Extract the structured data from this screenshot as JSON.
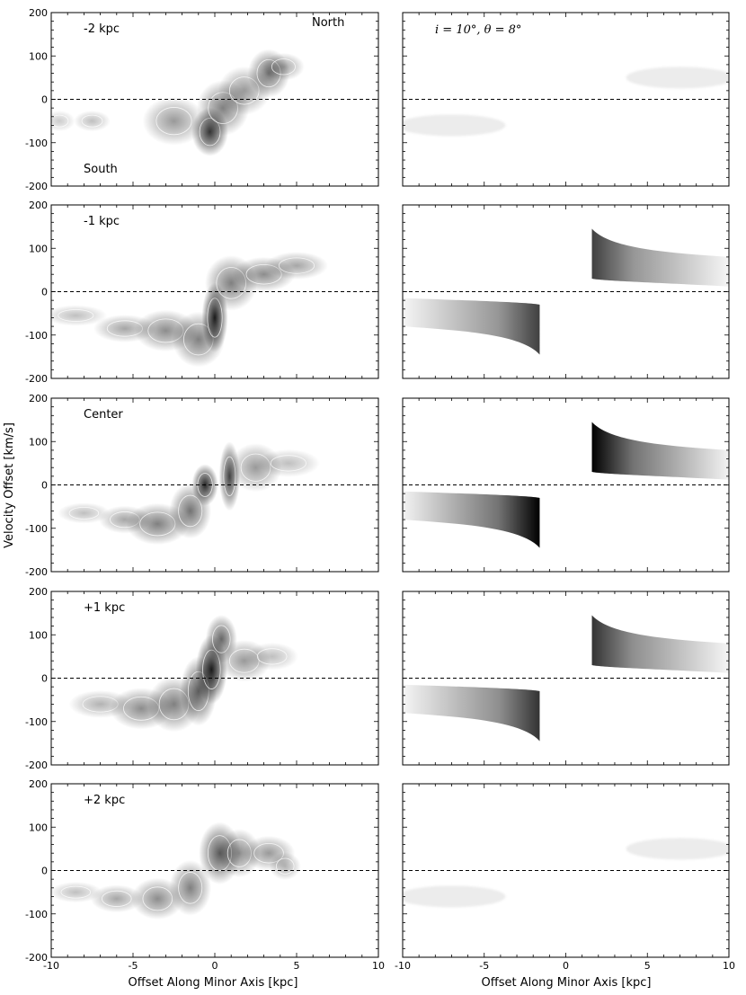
{
  "chart_data": {
    "type": "heatmap",
    "description_kind": "position-velocity diagrams, observed (left) and model (right)",
    "xlabel": "Offset Along Minor Axis [kpc]",
    "ylabel": "Velocity Offset [km/s]",
    "xlim": [
      -10,
      10
    ],
    "ylim": [
      -200,
      200
    ],
    "x_ticks": [
      -10,
      -5,
      0,
      5,
      10
    ],
    "y_ticks": [
      -200,
      -100,
      0,
      100,
      200
    ],
    "reference_line": {
      "y": 0,
      "style": "dashed"
    },
    "colormap": "greys",
    "annotations": {
      "north": "North",
      "south": "South",
      "model_params": "i = 10°, θ = 8°"
    },
    "rows": [
      {
        "label": "-2 kpc",
        "observed_blobs": [
          {
            "x": -9.5,
            "v": -50,
            "sx": 0.6,
            "sv": 15,
            "a": 0.2
          },
          {
            "x": -7.5,
            "v": -50,
            "sx": 0.7,
            "sv": 15,
            "a": 0.25
          },
          {
            "x": -2.5,
            "v": -50,
            "sx": 1.2,
            "sv": 35,
            "a": 0.4
          },
          {
            "x": -0.3,
            "v": -75,
            "sx": 0.7,
            "sv": 35,
            "a": 0.8
          },
          {
            "x": 0.5,
            "v": -20,
            "sx": 1.0,
            "sv": 40,
            "a": 0.5
          },
          {
            "x": 1.8,
            "v": 20,
            "sx": 1.0,
            "sv": 35,
            "a": 0.4
          },
          {
            "x": 3.3,
            "v": 60,
            "sx": 0.8,
            "sv": 35,
            "a": 0.55
          },
          {
            "x": 4.2,
            "v": 75,
            "sx": 0.8,
            "sv": 20,
            "a": 0.35
          }
        ],
        "model": {
          "strength": 0.15,
          "peak_offset": 4.0
        }
      },
      {
        "label": "-1 kpc",
        "observed_blobs": [
          {
            "x": -8.5,
            "v": -55,
            "sx": 1.2,
            "sv": 15,
            "a": 0.25
          },
          {
            "x": -5.5,
            "v": -85,
            "sx": 1.2,
            "sv": 20,
            "a": 0.35
          },
          {
            "x": -3.0,
            "v": -90,
            "sx": 1.2,
            "sv": 30,
            "a": 0.45
          },
          {
            "x": -1.0,
            "v": -110,
            "sx": 1.0,
            "sv": 40,
            "a": 0.5
          },
          {
            "x": 0.0,
            "v": -60,
            "sx": 0.5,
            "sv": 50,
            "a": 0.9
          },
          {
            "x": 1.0,
            "v": 20,
            "sx": 1.0,
            "sv": 40,
            "a": 0.5
          },
          {
            "x": 3.0,
            "v": 40,
            "sx": 1.2,
            "sv": 25,
            "a": 0.45
          },
          {
            "x": 5.0,
            "v": 60,
            "sx": 1.2,
            "sv": 20,
            "a": 0.35
          }
        ],
        "model": {
          "strength": 0.75,
          "peak_offset": 1.6
        }
      },
      {
        "label": "Center",
        "observed_blobs": [
          {
            "x": -8.0,
            "v": -65,
            "sx": 1.0,
            "sv": 15,
            "a": 0.25
          },
          {
            "x": -5.5,
            "v": -80,
            "sx": 1.0,
            "sv": 20,
            "a": 0.35
          },
          {
            "x": -3.5,
            "v": -90,
            "sx": 1.2,
            "sv": 30,
            "a": 0.5
          },
          {
            "x": -1.5,
            "v": -60,
            "sx": 0.8,
            "sv": 40,
            "a": 0.55
          },
          {
            "x": -0.6,
            "v": 0,
            "sx": 0.5,
            "sv": 30,
            "a": 0.85
          },
          {
            "x": 0.9,
            "v": 20,
            "sx": 0.4,
            "sv": 50,
            "a": 0.75
          },
          {
            "x": 2.5,
            "v": 40,
            "sx": 1.0,
            "sv": 35,
            "a": 0.4
          },
          {
            "x": 4.5,
            "v": 50,
            "sx": 1.2,
            "sv": 20,
            "a": 0.25
          }
        ],
        "model": {
          "strength": 1.0,
          "peak_offset": 1.6
        }
      },
      {
        "label": "+1 kpc",
        "observed_blobs": [
          {
            "x": -7.0,
            "v": -60,
            "sx": 1.2,
            "sv": 20,
            "a": 0.3
          },
          {
            "x": -4.5,
            "v": -70,
            "sx": 1.2,
            "sv": 30,
            "a": 0.45
          },
          {
            "x": -2.5,
            "v": -60,
            "sx": 1.0,
            "sv": 40,
            "a": 0.5
          },
          {
            "x": -1.0,
            "v": -30,
            "sx": 0.7,
            "sv": 50,
            "a": 0.65
          },
          {
            "x": -0.2,
            "v": 20,
            "sx": 0.6,
            "sv": 50,
            "a": 0.9
          },
          {
            "x": 0.4,
            "v": 90,
            "sx": 0.6,
            "sv": 35,
            "a": 0.6
          },
          {
            "x": 1.8,
            "v": 40,
            "sx": 1.0,
            "sv": 30,
            "a": 0.4
          },
          {
            "x": 3.5,
            "v": 50,
            "sx": 1.0,
            "sv": 20,
            "a": 0.25
          }
        ],
        "model": {
          "strength": 0.8,
          "peak_offset": 1.6
        }
      },
      {
        "label": "+2 kpc",
        "observed_blobs": [
          {
            "x": -8.5,
            "v": -50,
            "sx": 1.0,
            "sv": 15,
            "a": 0.25
          },
          {
            "x": -6.0,
            "v": -65,
            "sx": 1.0,
            "sv": 20,
            "a": 0.35
          },
          {
            "x": -3.5,
            "v": -65,
            "sx": 1.0,
            "sv": 30,
            "a": 0.45
          },
          {
            "x": -1.5,
            "v": -40,
            "sx": 0.8,
            "sv": 40,
            "a": 0.5
          },
          {
            "x": 0.3,
            "v": 40,
            "sx": 0.8,
            "sv": 45,
            "a": 0.65
          },
          {
            "x": 1.5,
            "v": 40,
            "sx": 0.8,
            "sv": 35,
            "a": 0.45
          },
          {
            "x": 3.3,
            "v": 40,
            "sx": 1.0,
            "sv": 25,
            "a": 0.4
          },
          {
            "x": 4.3,
            "v": 10,
            "sx": 0.6,
            "sv": 20,
            "a": 0.3
          }
        ],
        "model": {
          "strength": 0.15,
          "peak_offset": 4.0
        }
      }
    ]
  }
}
